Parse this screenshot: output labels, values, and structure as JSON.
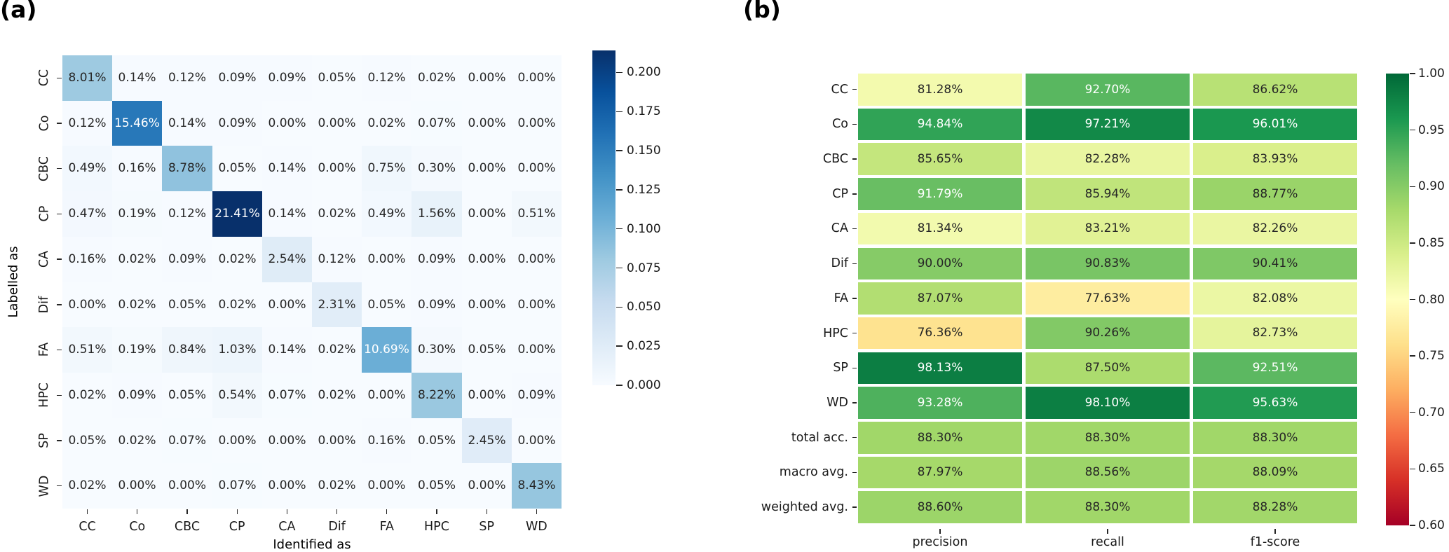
{
  "figure": {
    "background": "#ffffff"
  },
  "text_colors": {
    "dark_annotation": "#262626",
    "light_annotation": "#ffffff"
  },
  "colormaps": {
    "Blues": [
      "#f7fbff",
      "#deebf7",
      "#c6dbef",
      "#9ecae1",
      "#6baed6",
      "#4292c6",
      "#2171b5",
      "#08519c",
      "#08306b"
    ],
    "RdYlGn": [
      "#a50026",
      "#d73027",
      "#f46d43",
      "#fdae61",
      "#fee08b",
      "#ffffbf",
      "#d9ef8b",
      "#a6d96a",
      "#66bd63",
      "#1a9850",
      "#006837"
    ]
  },
  "chart_data": [
    {
      "type": "heatmap",
      "panel_label": "(a)",
      "title": "",
      "xlabel": "Identified as",
      "ylabel": "Labelled as",
      "x_categories": [
        "CC",
        "Co",
        "CBC",
        "CP",
        "CA",
        "Dif",
        "FA",
        "HPC",
        "SP",
        "WD"
      ],
      "y_categories": [
        "CC",
        "Co",
        "CBC",
        "CP",
        "CA",
        "Dif",
        "FA",
        "HPC",
        "SP",
        "WD"
      ],
      "values_percent": [
        [
          8.01,
          0.14,
          0.12,
          0.09,
          0.09,
          0.05,
          0.12,
          0.02,
          0.0,
          0.0
        ],
        [
          0.12,
          15.46,
          0.14,
          0.09,
          0.0,
          0.0,
          0.02,
          0.07,
          0.0,
          0.0
        ],
        [
          0.49,
          0.16,
          8.78,
          0.05,
          0.14,
          0.0,
          0.75,
          0.3,
          0.0,
          0.0
        ],
        [
          0.47,
          0.19,
          0.12,
          21.41,
          0.14,
          0.02,
          0.49,
          1.56,
          0.0,
          0.51
        ],
        [
          0.16,
          0.02,
          0.09,
          0.02,
          2.54,
          0.12,
          0.0,
          0.09,
          0.0,
          0.0
        ],
        [
          0.0,
          0.02,
          0.05,
          0.02,
          0.0,
          2.31,
          0.05,
          0.09,
          0.0,
          0.0
        ],
        [
          0.51,
          0.19,
          0.84,
          1.03,
          0.14,
          0.02,
          10.69,
          0.3,
          0.05,
          0.0
        ],
        [
          0.02,
          0.09,
          0.05,
          0.54,
          0.07,
          0.02,
          0.0,
          8.22,
          0.0,
          0.09
        ],
        [
          0.05,
          0.02,
          0.07,
          0.0,
          0.0,
          0.0,
          0.16,
          0.05,
          2.45,
          0.0
        ],
        [
          0.02,
          0.0,
          0.0,
          0.07,
          0.0,
          0.02,
          0.0,
          0.05,
          0.0,
          8.43
        ]
      ],
      "value_suffix": "%",
      "value_decimals": 2,
      "colormap": "Blues",
      "vmin": 0.0,
      "vmax": 0.2141,
      "colorbar_ticks": [
        0.2,
        0.175,
        0.15,
        0.125,
        0.1,
        0.075,
        0.05,
        0.025,
        0.0
      ],
      "colorbar_tick_decimals": 3,
      "legend_position": "right",
      "grid": "off"
    },
    {
      "type": "heatmap",
      "panel_label": "(b)",
      "title": "",
      "xlabel": "",
      "ylabel": "",
      "x_categories": [
        "precision",
        "recall",
        "f1-score"
      ],
      "y_categories": [
        "CC",
        "Co",
        "CBC",
        "CP",
        "CA",
        "Dif",
        "FA",
        "HPC",
        "SP",
        "WD",
        "total acc.",
        "macro avg.",
        "weighted avg."
      ],
      "values_percent": [
        [
          81.28,
          92.7,
          86.62
        ],
        [
          94.84,
          97.21,
          96.01
        ],
        [
          85.65,
          82.28,
          83.93
        ],
        [
          91.79,
          85.94,
          88.77
        ],
        [
          81.34,
          83.21,
          82.26
        ],
        [
          90.0,
          90.83,
          90.41
        ],
        [
          87.07,
          77.63,
          82.08
        ],
        [
          76.36,
          90.26,
          82.73
        ],
        [
          98.13,
          87.5,
          92.51
        ],
        [
          93.28,
          98.1,
          95.63
        ],
        [
          88.3,
          88.3,
          88.3
        ],
        [
          87.97,
          88.56,
          88.09
        ],
        [
          88.6,
          88.3,
          88.28
        ]
      ],
      "value_suffix": "%",
      "value_decimals": 2,
      "colormap": "RdYlGn",
      "vmin": 0.6,
      "vmax": 1.0,
      "colorbar_ticks": [
        1.0,
        0.95,
        0.9,
        0.85,
        0.8,
        0.75,
        0.7,
        0.65,
        0.6
      ],
      "colorbar_tick_decimals": 2,
      "legend_position": "right",
      "grid": "off"
    }
  ]
}
